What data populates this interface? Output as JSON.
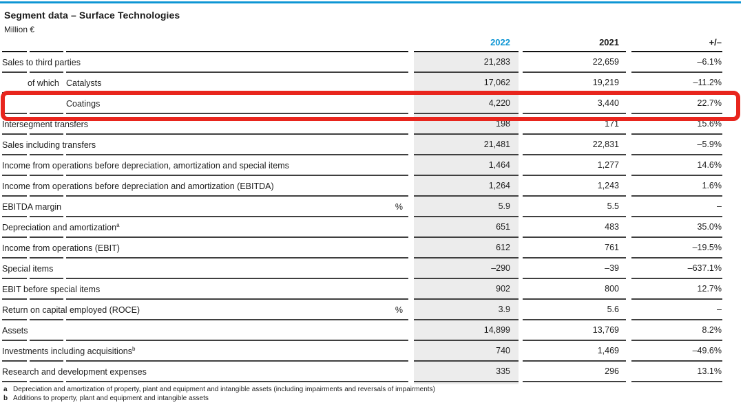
{
  "colors": {
    "accent": "#0e96d4",
    "shading": "#ececec",
    "highlight": "#e8251d",
    "line": "#3f3f3f"
  },
  "header": {
    "title": "Segment data – Surface Technologies",
    "unit_label": "Million €"
  },
  "table": {
    "columns": {
      "current": "2022",
      "previous": "2021",
      "change": "+/–"
    },
    "rows": [
      {
        "label": "Sales to third parties",
        "indent": 0,
        "prefix": "",
        "sup": "",
        "unit": "",
        "v2022": "21,283",
        "v2021": "22,659",
        "change": "–6.1%",
        "highlighted": false
      },
      {
        "label": "Catalysts",
        "indent": 1,
        "prefix": "of which",
        "sup": "",
        "unit": "",
        "v2022": "17,062",
        "v2021": "19,219",
        "change": "–11.2%",
        "highlighted": false
      },
      {
        "label": "Coatings",
        "indent": 2,
        "prefix": "",
        "sup": "",
        "unit": "",
        "v2022": "4,220",
        "v2021": "3,440",
        "change": "22.7%",
        "highlighted": true
      },
      {
        "label": "Intersegment transfers",
        "indent": 0,
        "prefix": "",
        "sup": "",
        "unit": "",
        "v2022": "198",
        "v2021": "171",
        "change": "15.6%",
        "highlighted": false
      },
      {
        "label": "Sales including transfers",
        "indent": 0,
        "prefix": "",
        "sup": "",
        "unit": "",
        "v2022": "21,481",
        "v2021": "22,831",
        "change": "–5.9%",
        "highlighted": false
      },
      {
        "label": "Income from operations before depreciation, amortization and special items",
        "indent": 0,
        "prefix": "",
        "sup": "",
        "unit": "",
        "v2022": "1,464",
        "v2021": "1,277",
        "change": "14.6%",
        "highlighted": false
      },
      {
        "label": "Income from operations before depreciation and amortization (EBITDA)",
        "indent": 0,
        "prefix": "",
        "sup": "",
        "unit": "",
        "v2022": "1,264",
        "v2021": "1,243",
        "change": "1.6%",
        "highlighted": false
      },
      {
        "label": "EBITDA margin",
        "indent": 0,
        "prefix": "",
        "sup": "",
        "unit": "%",
        "v2022": "5.9",
        "v2021": "5.5",
        "change": "–",
        "highlighted": false
      },
      {
        "label": "Depreciation and amortization",
        "indent": 0,
        "prefix": "",
        "sup": "a",
        "unit": "",
        "v2022": "651",
        "v2021": "483",
        "change": "35.0%",
        "highlighted": false
      },
      {
        "label": "Income from operations (EBIT)",
        "indent": 0,
        "prefix": "",
        "sup": "",
        "unit": "",
        "v2022": "612",
        "v2021": "761",
        "change": "–19.5%",
        "highlighted": false
      },
      {
        "label": "Special items",
        "indent": 0,
        "prefix": "",
        "sup": "",
        "unit": "",
        "v2022": "–290",
        "v2021": "–39",
        "change": "–637.1%",
        "highlighted": false
      },
      {
        "label": "EBIT before special items",
        "indent": 0,
        "prefix": "",
        "sup": "",
        "unit": "",
        "v2022": "902",
        "v2021": "800",
        "change": "12.7%",
        "highlighted": false
      },
      {
        "label": "Return on capital employed (ROCE)",
        "indent": 0,
        "prefix": "",
        "sup": "",
        "unit": "%",
        "v2022": "3.9",
        "v2021": "5.6",
        "change": "–",
        "highlighted": false
      },
      {
        "label": "Assets",
        "indent": 0,
        "prefix": "",
        "sup": "",
        "unit": "",
        "v2022": "14,899",
        "v2021": "13,769",
        "change": "8.2%",
        "highlighted": false
      },
      {
        "label": "Investments including acquisitions",
        "indent": 0,
        "prefix": "",
        "sup": "b",
        "unit": "",
        "v2022": "740",
        "v2021": "1,469",
        "change": "–49.6%",
        "highlighted": false
      },
      {
        "label": "Research and development expenses",
        "indent": 0,
        "prefix": "",
        "sup": "",
        "unit": "",
        "v2022": "335",
        "v2021": "296",
        "change": "13.1%",
        "highlighted": false
      }
    ]
  },
  "footnotes": [
    {
      "marker": "a",
      "text": "Depreciation and amortization of property, plant and equipment and intangible assets (including impairments and reversals of impairments)"
    },
    {
      "marker": "b",
      "text": "Additions to property, plant and equipment and intangible assets"
    }
  ]
}
